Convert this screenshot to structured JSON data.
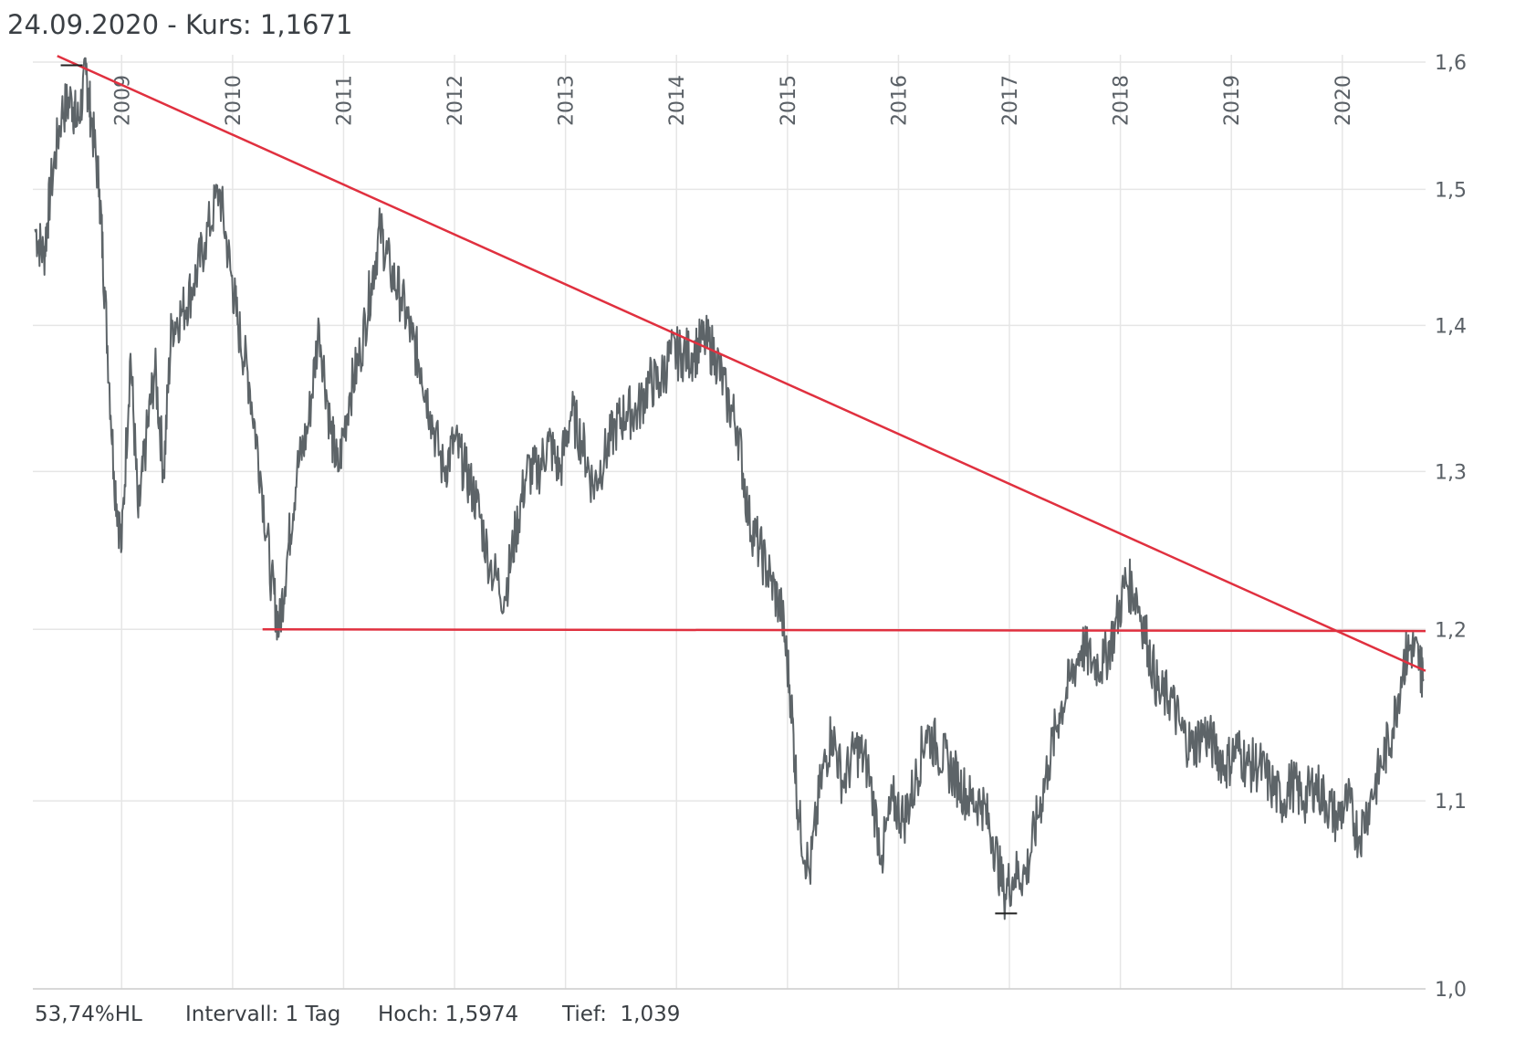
{
  "header": {
    "date": "24.09.2020",
    "kurs_label": " - Kurs: ",
    "kurs_value": "1,1671"
  },
  "footer": {
    "performance": "53,74%HL",
    "interval": "Intervall: 1 Tag",
    "high": "Hoch: 1,5974",
    "low": "Tief:  1,039"
  },
  "colors": {
    "price_line": "#5d6468",
    "trend_line": "#e0303f",
    "grid": "#e6e6e6"
  },
  "chart_data": {
    "type": "line",
    "y_scale": "log",
    "ylim": [
      1.0,
      1.6
    ],
    "xlim": [
      2008.2,
      2020.75
    ],
    "y_ticks": [
      {
        "value": 1.0,
        "label": "1,0"
      },
      {
        "value": 1.1,
        "label": "1,1"
      },
      {
        "value": 1.2,
        "label": "1,2"
      },
      {
        "value": 1.3,
        "label": "1,3"
      },
      {
        "value": 1.4,
        "label": "1,4"
      },
      {
        "value": 1.5,
        "label": "1,5"
      },
      {
        "value": 1.6,
        "label": "1,6"
      }
    ],
    "x_ticks": [
      {
        "value": 2009,
        "label": "2009"
      },
      {
        "value": 2010,
        "label": "2010"
      },
      {
        "value": 2011,
        "label": "2011"
      },
      {
        "value": 2012,
        "label": "2012"
      },
      {
        "value": 2013,
        "label": "2013"
      },
      {
        "value": 2014,
        "label": "2014"
      },
      {
        "value": 2015,
        "label": "2015"
      },
      {
        "value": 2016,
        "label": "2016"
      },
      {
        "value": 2017,
        "label": "2017"
      },
      {
        "value": 2018,
        "label": "2018"
      },
      {
        "value": 2019,
        "label": "2019"
      },
      {
        "value": 2020,
        "label": "2020"
      }
    ],
    "series": [
      {
        "x": [
          2008.22,
          2008.3,
          2008.36,
          2008.46,
          2008.55,
          2008.6,
          2008.68,
          2008.72,
          2008.8,
          2008.85,
          2008.93,
          2009.0,
          2009.08,
          2009.15,
          2009.22,
          2009.3,
          2009.38,
          2009.45,
          2009.55,
          2009.65,
          2009.75,
          2009.88,
          2009.98,
          2010.05,
          2010.15,
          2010.25,
          2010.35,
          2010.42,
          2010.5,
          2010.58,
          2010.68,
          2010.78,
          2010.88,
          2010.95,
          2011.05,
          2011.15,
          2011.25,
          2011.33,
          2011.42,
          2011.52,
          2011.62,
          2011.7,
          2011.78,
          2011.9,
          2012.0,
          2012.1,
          2012.2,
          2012.32,
          2012.45,
          2012.55,
          2012.65,
          2012.75,
          2012.85,
          2012.95,
          2013.05,
          2013.15,
          2013.25,
          2013.35,
          2013.45,
          2013.55,
          2013.65,
          2013.75,
          2013.85,
          2013.95,
          2014.05,
          2014.15,
          2014.25,
          2014.35,
          2014.45,
          2014.55,
          2014.65,
          2014.75,
          2014.85,
          2014.95,
          2015.03,
          2015.1,
          2015.2,
          2015.3,
          2015.4,
          2015.5,
          2015.62,
          2015.72,
          2015.85,
          2015.95,
          2016.05,
          2016.15,
          2016.25,
          2016.35,
          2016.45,
          2016.55,
          2016.65,
          2016.75,
          2016.85,
          2016.95,
          2017.05,
          2017.15,
          2017.25,
          2017.35,
          2017.45,
          2017.55,
          2017.65,
          2017.75,
          2017.85,
          2017.95,
          2018.05,
          2018.15,
          2018.25,
          2018.35,
          2018.45,
          2018.55,
          2018.65,
          2018.75,
          2018.85,
          2018.95,
          2019.05,
          2019.15,
          2019.25,
          2019.35,
          2019.45,
          2019.55,
          2019.65,
          2019.75,
          2019.85,
          2019.95,
          2020.05,
          2020.15,
          2020.25,
          2020.35,
          2020.45,
          2020.55,
          2020.62,
          2020.7,
          2020.73
        ],
        "y": [
          1.47,
          1.45,
          1.5,
          1.56,
          1.57,
          1.55,
          1.59,
          1.56,
          1.5,
          1.42,
          1.3,
          1.25,
          1.38,
          1.27,
          1.32,
          1.37,
          1.3,
          1.4,
          1.41,
          1.43,
          1.46,
          1.5,
          1.44,
          1.4,
          1.36,
          1.3,
          1.23,
          1.2,
          1.25,
          1.3,
          1.33,
          1.4,
          1.33,
          1.3,
          1.35,
          1.38,
          1.43,
          1.47,
          1.44,
          1.42,
          1.39,
          1.37,
          1.34,
          1.3,
          1.32,
          1.3,
          1.28,
          1.24,
          1.22,
          1.26,
          1.3,
          1.3,
          1.32,
          1.3,
          1.34,
          1.32,
          1.29,
          1.31,
          1.33,
          1.34,
          1.34,
          1.36,
          1.36,
          1.38,
          1.38,
          1.38,
          1.39,
          1.38,
          1.35,
          1.33,
          1.27,
          1.25,
          1.23,
          1.21,
          1.16,
          1.09,
          1.06,
          1.11,
          1.14,
          1.11,
          1.13,
          1.12,
          1.07,
          1.1,
          1.09,
          1.11,
          1.14,
          1.13,
          1.12,
          1.11,
          1.1,
          1.1,
          1.08,
          1.05,
          1.06,
          1.06,
          1.09,
          1.12,
          1.15,
          1.17,
          1.19,
          1.18,
          1.18,
          1.2,
          1.23,
          1.22,
          1.19,
          1.16,
          1.16,
          1.14,
          1.13,
          1.14,
          1.13,
          1.12,
          1.13,
          1.12,
          1.12,
          1.11,
          1.1,
          1.11,
          1.1,
          1.11,
          1.1,
          1.09,
          1.1,
          1.08,
          1.1,
          1.12,
          1.14,
          1.18,
          1.19,
          1.18,
          1.17
        ]
      }
    ],
    "annotations": [
      {
        "type": "trendline",
        "x1": 2008.42,
        "y1": 1.605,
        "x2": 2020.75,
        "y2": 1.175
      },
      {
        "type": "hline",
        "x1": 2010.27,
        "y1": 1.2,
        "x2": 2020.75,
        "y2": 1.199
      },
      {
        "type": "high-marker",
        "x": 2008.55,
        "y": 1.5974
      },
      {
        "type": "low-marker",
        "x": 2016.97,
        "y": 1.039
      }
    ]
  }
}
